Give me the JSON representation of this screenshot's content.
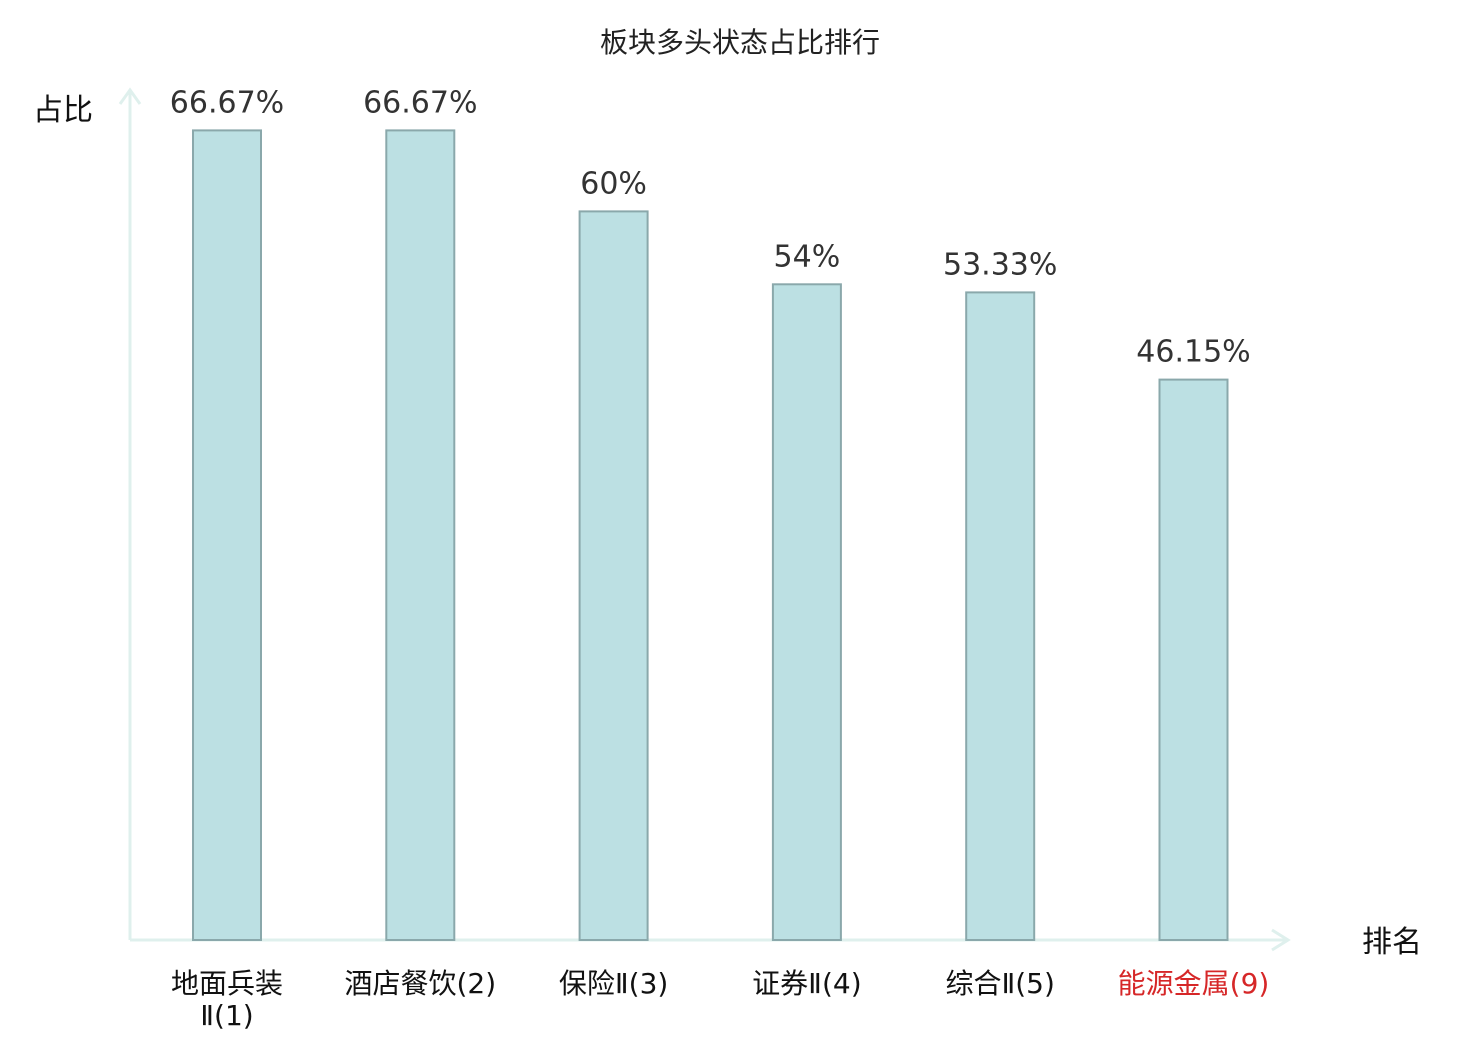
{
  "chart_data": {
    "type": "bar",
    "title": "板块多头状态占比排行",
    "ylabel": "占比",
    "xlabel": "排名",
    "ylim": [
      0,
      70
    ],
    "grid": false,
    "categories": [
      "地面兵装Ⅱ(1)",
      "酒店餐饮(2)",
      "保险Ⅱ(3)",
      "证券Ⅱ(4)",
      "综合Ⅱ(5)",
      "能源金属(9)"
    ],
    "category_lines": [
      [
        "地面兵装",
        "Ⅱ(1)"
      ],
      [
        "酒店餐饮(2)"
      ],
      [
        "保险Ⅱ(3)"
      ],
      [
        "证券Ⅱ(4)"
      ],
      [
        "综合Ⅱ(5)"
      ],
      [
        "能源金属(9)"
      ]
    ],
    "values": [
      66.67,
      66.67,
      60,
      54,
      53.33,
      46.15
    ],
    "data_labels": [
      "66.67%",
      "66.67%",
      "60%",
      "54%",
      "53.33%",
      "46.15%"
    ],
    "highlight_category": "能源金属(9)",
    "colors": {
      "bar_fill": "#bce0e3",
      "bar_stroke": "#8aa8ab",
      "axis": "#dff0ed",
      "highlight_text": "#d62728",
      "label_text": "#333333"
    }
  }
}
